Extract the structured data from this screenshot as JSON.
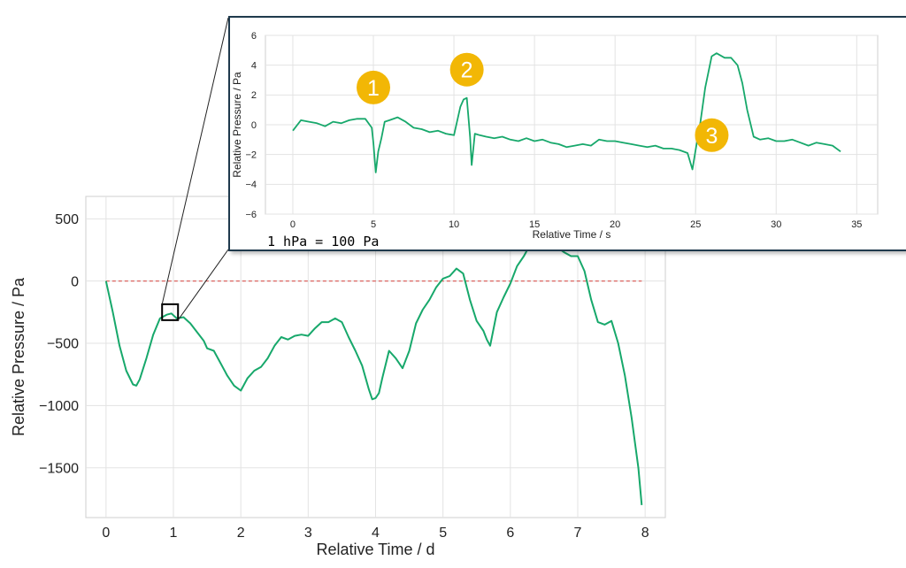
{
  "chart_data": [
    {
      "type": "line",
      "title": "",
      "xlabel": "Relative Time / d",
      "ylabel": "Relative Pressure / Pa",
      "xlim": [
        -0.3,
        8.3
      ],
      "ylim": [
        -1900,
        680
      ],
      "xticks": [
        0,
        1,
        2,
        3,
        4,
        5,
        6,
        7,
        8
      ],
      "yticks": [
        500,
        0,
        -500,
        -1000,
        -1500
      ],
      "ytick_labels": [
        "500",
        "0",
        "−500",
        "−1000",
        "−1500"
      ],
      "grid": true,
      "reference_line": {
        "y": 0,
        "x_range": [
          0,
          7.95
        ],
        "color": "#d9534f",
        "style": "dashed"
      },
      "series": [
        {
          "color": "#17a86b",
          "x": [
            0,
            0.1,
            0.2,
            0.3,
            0.4,
            0.45,
            0.5,
            0.6,
            0.7,
            0.8,
            0.9,
            0.97,
            1.05,
            1.15,
            1.25,
            1.35,
            1.45,
            1.5,
            1.6,
            1.7,
            1.8,
            1.9,
            2.0,
            2.1,
            2.2,
            2.3,
            2.4,
            2.5,
            2.6,
            2.7,
            2.8,
            2.9,
            3.0,
            3.1,
            3.2,
            3.3,
            3.4,
            3.5,
            3.6,
            3.7,
            3.8,
            3.9,
            3.95,
            4.0,
            4.05,
            4.1,
            4.2,
            4.3,
            4.4,
            4.5,
            4.6,
            4.7,
            4.8,
            4.9,
            5.0,
            5.1,
            5.2,
            5.3,
            5.4,
            5.5,
            5.6,
            5.65,
            5.7,
            5.8,
            5.9,
            6.0,
            6.1,
            6.2,
            6.3,
            6.4,
            6.5,
            6.6,
            6.7,
            6.8,
            6.9,
            7.0,
            7.1,
            7.2,
            7.3,
            7.4,
            7.5,
            7.6,
            7.7,
            7.8,
            7.85,
            7.9,
            7.95
          ],
          "y": [
            0,
            -250,
            -520,
            -720,
            -830,
            -840,
            -790,
            -620,
            -430,
            -300,
            -270,
            -260,
            -300,
            -290,
            -340,
            -410,
            -480,
            -540,
            -560,
            -660,
            -760,
            -840,
            -880,
            -780,
            -720,
            -690,
            -620,
            -520,
            -450,
            -470,
            -440,
            -430,
            -440,
            -380,
            -330,
            -330,
            -300,
            -330,
            -450,
            -560,
            -680,
            -870,
            -950,
            -940,
            -900,
            -780,
            -560,
            -620,
            -700,
            -560,
            -340,
            -230,
            -150,
            -50,
            20,
            40,
            100,
            60,
            -150,
            -320,
            -400,
            -470,
            -520,
            -250,
            -130,
            -20,
            120,
            200,
            300,
            310,
            260,
            290,
            270,
            230,
            200,
            200,
            80,
            -150,
            -330,
            -350,
            -320,
            -500,
            -760,
            -1100,
            -1300,
            -1500,
            -1800
          ]
        }
      ],
      "zoom_box": {
        "x": 0.95,
        "y": -250
      }
    },
    {
      "type": "line",
      "title": "",
      "xlabel": "Relative Time / s",
      "ylabel": "Relative Pressure / Pa",
      "xlim": [
        -1.7,
        36.3
      ],
      "ylim": [
        -6,
        6
      ],
      "xticks": [
        0,
        5,
        10,
        15,
        20,
        25,
        30,
        35
      ],
      "yticks": [
        6,
        4,
        2,
        0,
        -2,
        -4,
        -6
      ],
      "ytick_labels": [
        "6",
        "4",
        "2",
        "0",
        "−2",
        "−4",
        "−6"
      ],
      "grid": true,
      "series": [
        {
          "color": "#17a86b",
          "x": [
            0,
            0.5,
            1,
            1.5,
            2,
            2.5,
            3,
            3.5,
            4,
            4.5,
            4.9,
            5.0,
            5.15,
            5.3,
            5.5,
            5.7,
            6,
            6.5,
            7,
            7.5,
            8,
            8.5,
            9,
            9.5,
            10,
            10.4,
            10.6,
            10.8,
            11,
            11.1,
            11.3,
            11.6,
            12,
            12.5,
            13,
            13.5,
            14,
            14.5,
            15,
            15.5,
            16,
            16.5,
            17,
            17.5,
            18,
            18.5,
            19,
            19.5,
            20,
            20.5,
            21,
            21.5,
            22,
            22.5,
            23,
            23.5,
            24,
            24.5,
            24.8,
            25.0,
            25.3,
            25.6,
            26,
            26.3,
            26.8,
            27.2,
            27.6,
            27.9,
            28.2,
            28.6,
            29,
            29.5,
            30,
            30.5,
            31,
            31.5,
            32,
            32.5,
            33,
            33.5,
            34
          ],
          "y": [
            -0.4,
            0.3,
            0.2,
            0.1,
            -0.1,
            0.2,
            0.1,
            0.3,
            0.4,
            0.4,
            -0.2,
            -1.2,
            -3.2,
            -1.8,
            -0.9,
            0.2,
            0.3,
            0.5,
            0.2,
            -0.2,
            -0.3,
            -0.5,
            -0.4,
            -0.6,
            -0.7,
            1.2,
            1.7,
            1.8,
            -0.8,
            -2.7,
            -0.6,
            -0.7,
            -0.8,
            -0.9,
            -0.8,
            -1.0,
            -1.1,
            -0.9,
            -1.1,
            -1.0,
            -1.2,
            -1.3,
            -1.5,
            -1.4,
            -1.3,
            -1.4,
            -1.0,
            -1.1,
            -1.1,
            -1.2,
            -1.3,
            -1.4,
            -1.5,
            -1.4,
            -1.6,
            -1.6,
            -1.7,
            -1.9,
            -3.0,
            -1.7,
            0.2,
            2.5,
            4.6,
            4.8,
            4.5,
            4.5,
            4.0,
            2.8,
            1.0,
            -0.8,
            -1.0,
            -0.9,
            -1.1,
            -1.1,
            -1.0,
            -1.2,
            -1.4,
            -1.2,
            -1.3,
            -1.4,
            -1.8
          ]
        }
      ],
      "annotations": [
        {
          "label": "1",
          "x": 5.0,
          "y": 2.5
        },
        {
          "label": "2",
          "x": 10.8,
          "y": 3.7
        },
        {
          "label": "3",
          "x": 26.0,
          "y": -0.7
        }
      ],
      "annotation_color": "#f2b705"
    }
  ],
  "inset": {
    "note": "1 hPa = 100 Pa",
    "frame_color": "#1f3a4d"
  }
}
